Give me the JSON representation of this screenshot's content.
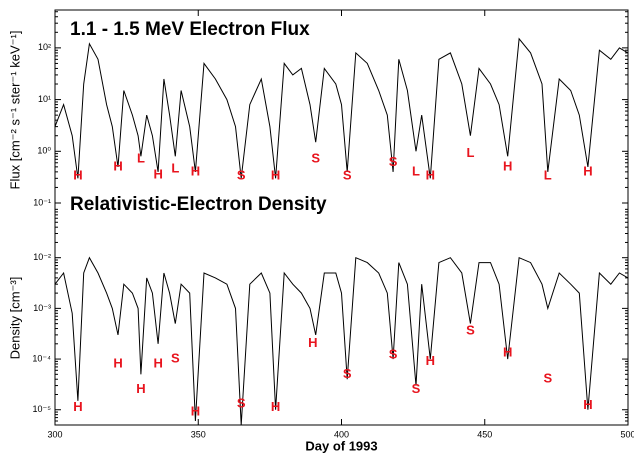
{
  "chart_data": [
    {
      "type": "line",
      "title": "1.1 - 1.5 MeV Electron Flux",
      "ylabel": "Flux [cm⁻² s⁻¹ ster⁻¹ keV⁻¹]",
      "log_y": true,
      "color": "#000000",
      "xlim": [
        300,
        500
      ],
      "ylim": [
        0.1,
        540
      ],
      "yticks": [
        {
          "value": 0.1,
          "label": "10⁻¹"
        },
        {
          "value": 1,
          "label": "10⁰"
        },
        {
          "value": 10,
          "label": "10¹"
        },
        {
          "value": 100,
          "label": "10²"
        }
      ],
      "x": [
        300,
        303,
        306,
        308,
        310,
        312,
        315,
        318,
        320,
        322,
        324,
        327,
        329,
        330,
        332,
        334,
        336,
        338,
        340,
        342,
        344,
        347,
        349,
        352,
        356,
        360,
        363,
        365,
        368,
        372,
        375,
        377,
        380,
        383,
        386,
        389,
        391,
        394,
        398,
        400,
        402,
        405,
        409,
        413,
        416,
        418,
        420,
        423,
        426,
        428,
        431,
        434,
        438,
        442,
        445,
        448,
        452,
        455,
        458,
        462,
        466,
        470,
        472,
        476,
        480,
        483,
        486,
        490,
        494,
        497,
        500
      ],
      "values": [
        3,
        8,
        2,
        0.3,
        20,
        120,
        60,
        8,
        3,
        0.5,
        15,
        5,
        2,
        0.8,
        5,
        2,
        0.4,
        25,
        5,
        0.8,
        15,
        3,
        0.4,
        50,
        25,
        10,
        3,
        0.3,
        8,
        25,
        3,
        0.3,
        50,
        30,
        40,
        8,
        1.5,
        40,
        20,
        8,
        0.4,
        80,
        50,
        15,
        5,
        0.4,
        60,
        15,
        1,
        5,
        0.3,
        60,
        80,
        20,
        2,
        40,
        20,
        8,
        0.8,
        150,
        80,
        20,
        0.4,
        25,
        15,
        5,
        0.5,
        90,
        60,
        100,
        80
      ],
      "annotation_color": "#e8141e",
      "annotations": [
        {
          "text": "H",
          "x": 308,
          "y": 0.33
        },
        {
          "text": "H",
          "x": 322,
          "y": 0.5
        },
        {
          "text": "L",
          "x": 330,
          "y": 0.7
        },
        {
          "text": "H",
          "x": 336,
          "y": 0.35
        },
        {
          "text": "L",
          "x": 342,
          "y": 0.45
        },
        {
          "text": "H",
          "x": 349,
          "y": 0.4
        },
        {
          "text": "S",
          "x": 365,
          "y": 0.33
        },
        {
          "text": "H",
          "x": 377,
          "y": 0.33
        },
        {
          "text": "S",
          "x": 391,
          "y": 0.7
        },
        {
          "text": "S",
          "x": 402,
          "y": 0.33
        },
        {
          "text": "S",
          "x": 418,
          "y": 0.6
        },
        {
          "text": "L",
          "x": 426,
          "y": 0.4
        },
        {
          "text": "H",
          "x": 431,
          "y": 0.33
        },
        {
          "text": "L",
          "x": 445,
          "y": 0.9
        },
        {
          "text": "H",
          "x": 458,
          "y": 0.5
        },
        {
          "text": "L",
          "x": 472,
          "y": 0.33
        },
        {
          "text": "H",
          "x": 486,
          "y": 0.4
        }
      ]
    },
    {
      "type": "line",
      "title": "Relativistic-Electron Density",
      "ylabel": "Density [cm⁻³]",
      "xlabel": "Day of 1993",
      "log_y": true,
      "color": "#000000",
      "xlim": [
        300,
        500
      ],
      "ylim": [
        5e-06,
        0.12
      ],
      "xticks": [
        300,
        350,
        400,
        450,
        500
      ],
      "yticks": [
        {
          "value": 1e-05,
          "label": "10⁻⁵"
        },
        {
          "value": 0.0001,
          "label": "10⁻⁴"
        },
        {
          "value": 0.001,
          "label": "10⁻³"
        },
        {
          "value": 0.01,
          "label": "10⁻²"
        }
      ],
      "x": [
        300,
        303,
        306,
        308,
        310,
        312,
        315,
        318,
        320,
        322,
        324,
        327,
        329,
        330,
        332,
        334,
        336,
        338,
        340,
        342,
        344,
        347,
        349,
        352,
        356,
        360,
        363,
        365,
        368,
        372,
        375,
        377,
        380,
        383,
        386,
        389,
        391,
        394,
        398,
        400,
        402,
        405,
        409,
        413,
        416,
        418,
        420,
        423,
        426,
        428,
        431,
        434,
        438,
        442,
        445,
        448,
        452,
        455,
        458,
        462,
        466,
        470,
        472,
        476,
        480,
        483,
        486,
        490,
        494,
        497,
        500
      ],
      "values": [
        0.003,
        0.005,
        0.0008,
        1.5e-05,
        0.005,
        0.01,
        0.005,
        0.002,
        0.001,
        0.0003,
        0.003,
        0.002,
        0.001,
        5e-05,
        0.004,
        0.002,
        0.0002,
        0.005,
        0.002,
        0.0005,
        0.003,
        0.002,
        6e-06,
        0.005,
        0.004,
        0.003,
        0.001,
        5e-06,
        0.003,
        0.005,
        0.002,
        1e-05,
        0.005,
        0.003,
        0.002,
        0.001,
        0.0003,
        0.005,
        0.005,
        0.002,
        4e-05,
        0.01,
        0.008,
        0.005,
        0.002,
        0.0001,
        0.008,
        0.003,
        3e-05,
        0.003,
        0.0001,
        0.008,
        0.01,
        0.005,
        0.0005,
        0.008,
        0.008,
        0.003,
        0.0001,
        0.01,
        0.008,
        0.003,
        0.001,
        0.005,
        0.003,
        0.002,
        1e-05,
        0.005,
        0.003,
        0.005,
        0.004
      ],
      "annotation_color": "#e8141e",
      "annotations": [
        {
          "text": "H",
          "x": 308,
          "y": 1.1e-05
        },
        {
          "text": "H",
          "x": 322,
          "y": 8e-05
        },
        {
          "text": "H",
          "x": 330,
          "y": 2.5e-05
        },
        {
          "text": "H",
          "x": 336,
          "y": 8e-05
        },
        {
          "text": "S",
          "x": 342,
          "y": 0.0001
        },
        {
          "text": "H",
          "x": 349,
          "y": 9e-06
        },
        {
          "text": "S",
          "x": 365,
          "y": 1.3e-05
        },
        {
          "text": "H",
          "x": 377,
          "y": 1.1e-05
        },
        {
          "text": "H",
          "x": 390,
          "y": 0.0002
        },
        {
          "text": "S",
          "x": 402,
          "y": 5e-05
        },
        {
          "text": "S",
          "x": 418,
          "y": 0.00012
        },
        {
          "text": "S",
          "x": 426,
          "y": 2.5e-05
        },
        {
          "text": "H",
          "x": 431,
          "y": 9e-05
        },
        {
          "text": "S",
          "x": 445,
          "y": 0.00036
        },
        {
          "text": "H",
          "x": 458,
          "y": 0.00013
        },
        {
          "text": "S",
          "x": 472,
          "y": 4e-05
        },
        {
          "text": "H",
          "x": 486,
          "y": 1.2e-05
        }
      ]
    }
  ]
}
